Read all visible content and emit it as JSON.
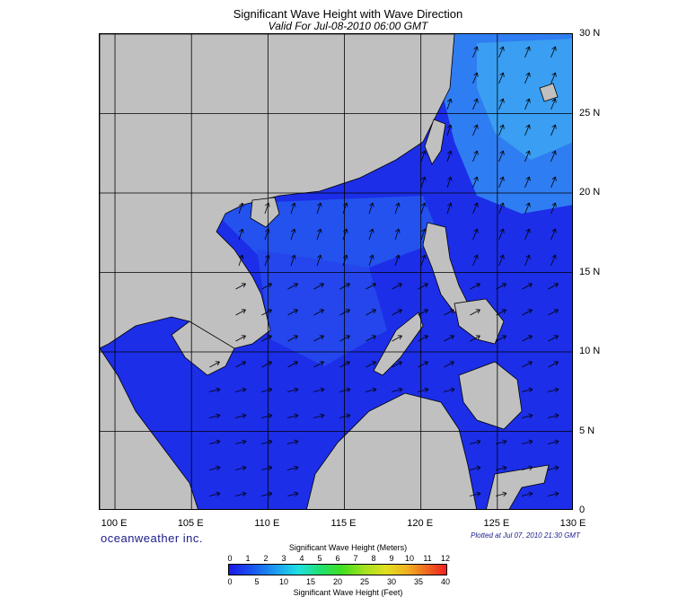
{
  "title": "Significant Wave Height with Wave Direction",
  "subtitle": "Valid For Jul-08-2010 06:00 GMT",
  "brand": "oceanweather inc.",
  "plotted": "Plotted at Jul 07, 2010 21:30 GMT",
  "lat_labels": [
    "30 N",
    "25 N",
    "20 N",
    "15 N",
    "10 N",
    "5 N",
    "0"
  ],
  "lon_labels": [
    "100 E",
    "105 E",
    "110 E",
    "115 E",
    "120 E",
    "125 E",
    "130 E"
  ],
  "colorbar": {
    "title_meters": "Significant Wave Height (Meters)",
    "title_feet": "Significant Wave Height (Feet)",
    "meters": [
      "0",
      "1",
      "2",
      "3",
      "4",
      "5",
      "6",
      "7",
      "8",
      "9",
      "10",
      "11",
      "12"
    ],
    "feet": [
      "0",
      "5",
      "10",
      "15",
      "20",
      "25",
      "30",
      "35",
      "40"
    ]
  },
  "colors": {
    "land": "#c0c0c0",
    "ocean_low": "#1a1ae6",
    "ocean_mid": "#2a5af0",
    "ocean_high": "#3aa0f0",
    "arrow": "#000000"
  }
}
